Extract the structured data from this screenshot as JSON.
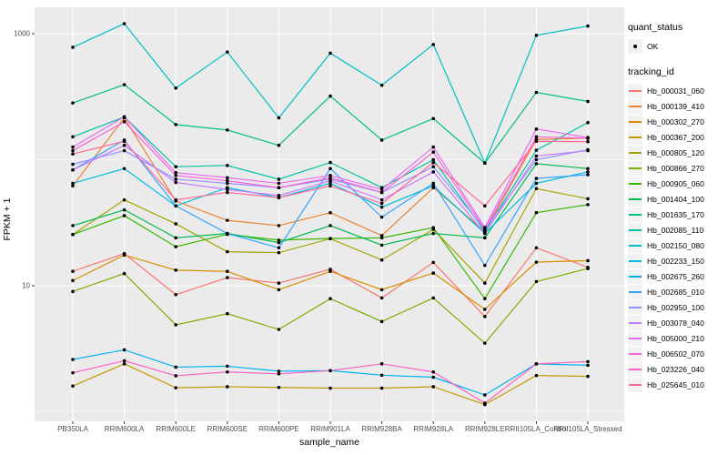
{
  "figure": {
    "background": "#FFFFFF",
    "panel_background": "#EBEBEB",
    "grid_color": "#FFFFFF",
    "axis_text_color": "#4D4D4D",
    "point_color": "#000000"
  },
  "chart_data": {
    "type": "line",
    "title": "",
    "xlabel": "sample_name",
    "ylabel": "FPKM + 1",
    "y_scale": "log10",
    "ylim": [
      0.84,
      1620
    ],
    "grid": true,
    "legend_position": "right",
    "y_axis_ticks": [
      {
        "label": "1000",
        "value": 1000
      },
      {
        "label": "10",
        "value": 10
      }
    ],
    "y_minor_gridlines": [
      1,
      100
    ],
    "categories": [
      "PB350LA",
      "RRIM600LA",
      "RRIM600LE",
      "RRIM600SE",
      "RRIM600PE",
      "RRIM901LA",
      "RRIM928BA",
      "RRIM928LA",
      "RRIM928LE",
      "RRII105LA_Control",
      "RRII105LA_Stressed"
    ],
    "legend": {
      "quant_status_title": "quant_status",
      "quant_status_items": [
        "OK"
      ],
      "tracking_id_title": "tracking_id"
    },
    "series": [
      {
        "name": "Hb_000031_060",
        "color": "#F8766D",
        "values": [
          13,
          18,
          8.5,
          11.6,
          10.5,
          13.5,
          8,
          15.3,
          5.7,
          20,
          14
        ]
      },
      {
        "name": "Hb_000139_410",
        "color": "#EA8331",
        "values": [
          62,
          215,
          47,
          33,
          30,
          38,
          25,
          60,
          27,
          145,
          148
        ]
      },
      {
        "name": "Hb_000302_270",
        "color": "#D89000",
        "values": [
          11,
          17.5,
          13.3,
          13,
          9.3,
          13,
          9.3,
          12.6,
          6.5,
          15.4,
          15.8
        ]
      },
      {
        "name": "Hb_000367_200",
        "color": "#C09B00",
        "values": [
          1.6,
          2.4,
          1.55,
          1.58,
          1.56,
          1.54,
          1.54,
          1.58,
          1.14,
          1.94,
          1.91
        ]
      },
      {
        "name": "Hb_000805_120",
        "color": "#A3A500",
        "values": [
          25.5,
          48,
          31,
          18.6,
          18.3,
          23.6,
          16,
          28,
          10.5,
          59,
          49
        ]
      },
      {
        "name": "Hb_000866_270",
        "color": "#7CAE00",
        "values": [
          9,
          12.5,
          4.9,
          6,
          4.5,
          7.9,
          5.2,
          8,
          3.5,
          10.8,
          13.7
        ]
      },
      {
        "name": "Hb_000905_060",
        "color": "#39B600",
        "values": [
          25.5,
          36,
          20.4,
          25.6,
          23,
          23.7,
          24,
          28.9,
          7.9,
          38,
          44
        ]
      },
      {
        "name": "Hb_001404_100",
        "color": "#00BB4E",
        "values": [
          30,
          40,
          24,
          26,
          22,
          30,
          21,
          26,
          24,
          93,
          85
        ]
      },
      {
        "name": "Hb_001635_170",
        "color": "#00BF7D",
        "values": [
          282,
          394,
          190,
          172,
          130,
          320,
          143,
          212,
          94,
          342,
          290
        ]
      },
      {
        "name": "Hb_002085_110",
        "color": "#00C1A3",
        "values": [
          152,
          218,
          88,
          90,
          70,
          95,
          60,
          100,
          27,
          119,
          197
        ]
      },
      {
        "name": "Hb_002150_080",
        "color": "#00BFC4",
        "values": [
          780,
          1200,
          370,
          715,
          215,
          700,
          390,
          820,
          94,
          970,
          1150
        ]
      },
      {
        "name": "Hb_002233_150",
        "color": "#00BADE",
        "values": [
          65,
          85,
          43,
          60,
          50,
          65,
          42,
          62,
          26,
          65,
          80
        ]
      },
      {
        "name": "Hb_002675_260",
        "color": "#00B0F6",
        "values": [
          2.6,
          3.1,
          2.26,
          2.3,
          2.1,
          2.12,
          1.95,
          1.88,
          1.36,
          2.4,
          2.34
        ]
      },
      {
        "name": "Hb_002685_010",
        "color": "#35A2FF",
        "values": [
          83,
          143,
          43,
          26,
          20,
          85,
          35,
          65,
          14.5,
          71,
          76
        ]
      },
      {
        "name": "Hb_002950_100",
        "color": "#9590FF",
        "values": [
          92,
          118,
          70,
          65,
          60,
          70,
          55,
          88,
          28,
          100,
          120
        ]
      },
      {
        "name": "Hb_003078_040",
        "color": "#C77CFF",
        "values": [
          83,
          130,
          66,
          58,
          52,
          68,
          48,
          80,
          26,
          107,
          118
        ]
      },
      {
        "name": "Hb_005000_210",
        "color": "#E76BF3",
        "values": [
          126,
          219,
          79,
          72,
          65,
          75,
          58,
          126,
          29,
          175,
          150
        ]
      },
      {
        "name": "Hb_006502_070",
        "color": "#FA62DB",
        "values": [
          118,
          200,
          75,
          68,
          60,
          72,
          55,
          115,
          28,
          152,
          148
        ]
      },
      {
        "name": "Hb_023226_040",
        "color": "#FF61C3",
        "values": [
          2.04,
          2.54,
          1.93,
          2.07,
          2.0,
          2.12,
          2.4,
          2.07,
          1.17,
          2.4,
          2.5
        ]
      },
      {
        "name": "Hb_025645_010",
        "color": "#FF6A98",
        "values": [
          111,
          140,
          48,
          55,
          50,
          62,
          45,
          95,
          43,
          140,
          139
        ]
      }
    ]
  }
}
